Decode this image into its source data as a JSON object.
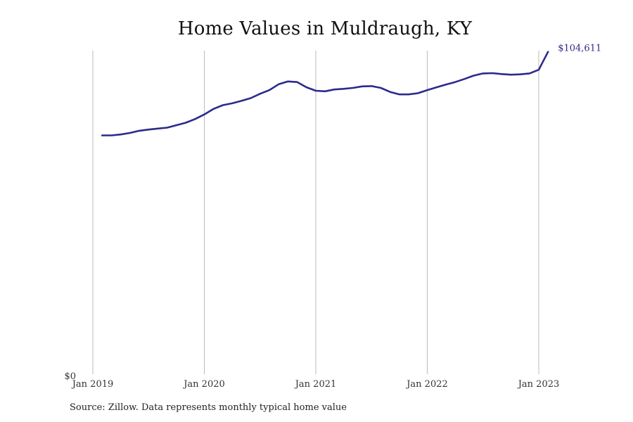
{
  "chart_data": {
    "type": "line",
    "title": "Home Values in Muldraugh, KY",
    "xlabel": "",
    "ylabel": "",
    "x_ticks": [
      "Jan 2019",
      "Jan 2020",
      "Jan 2021",
      "Jan 2022",
      "Jan 2023"
    ],
    "y_ticks": [
      "$0"
    ],
    "ylim": [
      0,
      105000
    ],
    "grid": "vertical",
    "line_color": "#2d2a8c",
    "grid_color": "#bbbbbb",
    "end_label": "$104,611",
    "series": [
      {
        "name": "",
        "x": [
          "2019-02",
          "2019-03",
          "2019-04",
          "2019-05",
          "2019-06",
          "2019-07",
          "2019-08",
          "2019-09",
          "2019-10",
          "2019-11",
          "2019-12",
          "2020-01",
          "2020-02",
          "2020-03",
          "2020-04",
          "2020-05",
          "2020-06",
          "2020-07",
          "2020-08",
          "2020-09",
          "2020-10",
          "2020-11",
          "2020-12",
          "2021-01",
          "2021-02",
          "2021-03",
          "2021-04",
          "2021-05",
          "2021-06",
          "2021-07",
          "2021-08",
          "2021-09",
          "2021-10",
          "2021-11",
          "2021-12",
          "2022-01",
          "2022-02",
          "2022-03",
          "2022-04",
          "2022-05",
          "2022-06",
          "2022-07",
          "2022-08",
          "2022-09",
          "2022-10",
          "2022-11",
          "2022-12",
          "2023-01",
          "2023-02"
        ],
        "values": [
          77500,
          77500,
          77800,
          78300,
          79000,
          79400,
          79700,
          80000,
          80800,
          81600,
          82800,
          84300,
          86100,
          87300,
          87900,
          88700,
          89600,
          91000,
          92200,
          94100,
          95000,
          94800,
          93100,
          92000,
          91800,
          92400,
          92600,
          92900,
          93400,
          93500,
          92900,
          91600,
          90800,
          90800,
          91200,
          92200,
          93100,
          94000,
          94800,
          95800,
          96900,
          97600,
          97700,
          97400,
          97200,
          97300,
          97600,
          98800,
          104611
        ]
      }
    ]
  },
  "footer": {
    "source": "Source: Zillow. Data represents monthly typical home value"
  }
}
